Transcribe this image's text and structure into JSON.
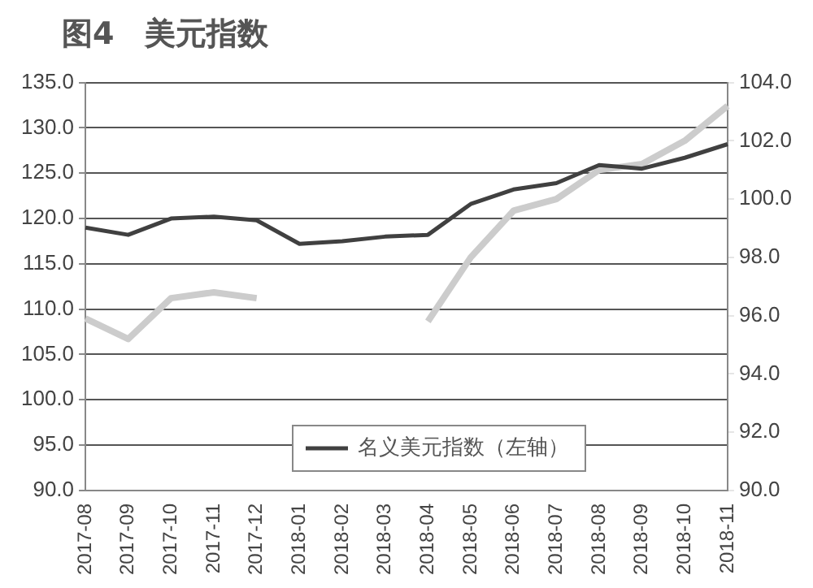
{
  "chart_data": {
    "type": "line",
    "title": "图4　美元指数",
    "categories": [
      "2017-08",
      "2017-09",
      "2017-10",
      "2017-11",
      "2017-12",
      "2018-01",
      "2018-02",
      "2018-03",
      "2018-04",
      "2018-05",
      "2018-06",
      "2018-07",
      "2018-08",
      "2018-09",
      "2018-10",
      "2018-11"
    ],
    "series": [
      {
        "name": "名义美元指数（左轴）",
        "color": "#404040",
        "values": [
          119.0,
          118.2,
          120.0,
          120.2,
          119.8,
          117.2,
          117.5,
          118.0,
          118.2,
          121.6,
          123.2,
          123.9,
          125.9,
          125.5,
          126.7,
          128.2
        ]
      },
      {
        "color": "#cccccc",
        "axis": "y2",
        "values": [
          95.9,
          95.2,
          96.6,
          96.8,
          96.6,
          null,
          null,
          null,
          95.8,
          98.0,
          99.6,
          100.0,
          101.0,
          101.2,
          102.0,
          103.2
        ]
      }
    ],
    "ylim": [
      90,
      135
    ],
    "yticks": [
      {
        "value": 90,
        "label": "90.0"
      },
      {
        "value": 95,
        "label": "95.0"
      },
      {
        "value": 100,
        "label": "100.0"
      },
      {
        "value": 105,
        "label": "105.0"
      },
      {
        "value": 110,
        "label": "110.0"
      },
      {
        "value": 115,
        "label": "115.0"
      },
      {
        "value": 120,
        "label": "120.0"
      },
      {
        "value": 125,
        "label": "125.0"
      },
      {
        "value": 130,
        "label": "130.0"
      },
      {
        "value": 135,
        "label": "135.0"
      }
    ],
    "y2lim": [
      90,
      104
    ],
    "y2ticks": [
      {
        "value": 90,
        "label": "90.0"
      },
      {
        "value": 92,
        "label": "92.0"
      },
      {
        "value": 94,
        "label": "94.0"
      },
      {
        "value": 96,
        "label": "96.0"
      },
      {
        "value": 98,
        "label": "98.0"
      },
      {
        "value": 100,
        "label": "100.0"
      },
      {
        "value": 102,
        "label": "102.0"
      },
      {
        "value": 104,
        "label": "104.0"
      }
    ],
    "grid": "y",
    "legend": "bottom",
    "marker": "none",
    "line_style": "solid"
  }
}
